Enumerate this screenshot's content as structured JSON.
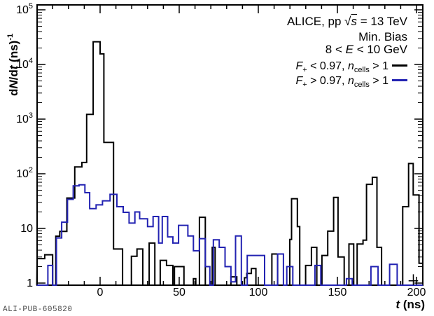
{
  "watermark": "ALI-PUB-605820",
  "colors": {
    "series_low_fplus": "#000000",
    "series_high_fplus": "#2222b2",
    "frame": "#000000",
    "watermark_text": "#4a4a4a"
  },
  "annotations": {
    "line1": {
      "pre": "ALICE, pp ",
      "sqrt_sign": "√",
      "sqrt_arg": "s",
      "post": " = 13 TeV"
    },
    "line2": "Min. Bias",
    "line3": {
      "pre": "8 < ",
      "var": "E",
      "post": " < 10 GeV"
    }
  },
  "legend": {
    "entries": [
      {
        "var1": "F",
        "sub1": "+",
        "mid": " < 0.97, ",
        "var2": "n",
        "sub2": "cells",
        "post": " > 1",
        "color": "#000000"
      },
      {
        "var1": "F",
        "sub1": "+",
        "mid": " > 0.97, ",
        "var2": "n",
        "sub2": "cells",
        "post": " > 1",
        "color": "#2222b2"
      }
    ]
  },
  "axes": {
    "x": {
      "label": {
        "var": "t",
        "unit": " (ns)"
      },
      "min": -40,
      "max": 204,
      "major_ticks": [
        0,
        50,
        100,
        150,
        200
      ],
      "tick_labels": [
        "0",
        "50",
        "100",
        "150",
        "200"
      ],
      "minor_step": 10
    },
    "y": {
      "label": {
        "pre": "d",
        "var1": "N",
        "mid": "/d",
        "var2": "t",
        "unit": " (ns)",
        "sup": "-1"
      },
      "scale": "log",
      "min": 0.9,
      "max": 100000,
      "major_ticks": [
        1,
        10,
        100,
        1000,
        10000,
        100000
      ],
      "tick_labels": [
        {
          "base": "1",
          "exp": ""
        },
        {
          "base": "10",
          "exp": ""
        },
        {
          "base": "10",
          "exp": "2"
        },
        {
          "base": "10",
          "exp": "3"
        },
        {
          "base": "10",
          "exp": "4"
        },
        {
          "base": "10",
          "exp": "5"
        }
      ]
    }
  },
  "chart_data": {
    "type": "step-histogram",
    "title": "ALICE, pp sqrt(s) = 13 TeV, Min. Bias, 8 < E < 10 GeV",
    "xlabel": "t (ns)",
    "ylabel": "dN/dt (ns)^-1",
    "x_range": [
      -40,
      204
    ],
    "y_range": [
      0.9,
      100000
    ],
    "y_scale": "log",
    "grid": false,
    "legend_position": "top-right",
    "series": [
      {
        "name": "F+ < 0.97, n_cells > 1",
        "color": "#000000",
        "segments_t0_t1_value": [
          [
            -40,
            -35,
            2.8
          ],
          [
            -35,
            -30,
            3.3
          ],
          [
            -30,
            -28,
            0
          ],
          [
            -28,
            -25.5,
            7.2
          ],
          [
            -25.5,
            -21,
            8.8
          ],
          [
            -21,
            -16,
            36
          ],
          [
            -16,
            -11.5,
            133
          ],
          [
            -11.5,
            -8.5,
            161
          ],
          [
            -8.5,
            -4.4,
            1220
          ],
          [
            -4.4,
            0,
            26000
          ],
          [
            0,
            2.4,
            15600
          ],
          [
            2.4,
            8.5,
            375
          ],
          [
            8.5,
            14.2,
            4.2
          ],
          [
            14.2,
            19.8,
            0
          ],
          [
            19.8,
            23.3,
            3.1
          ],
          [
            23.3,
            27,
            4.2
          ],
          [
            27,
            31,
            0
          ],
          [
            31,
            34.6,
            5.4
          ],
          [
            34.6,
            38,
            0
          ],
          [
            38,
            42,
            2.6
          ],
          [
            42,
            46,
            2.1
          ],
          [
            46,
            47,
            0
          ],
          [
            47,
            53,
            2.0
          ],
          [
            53,
            59,
            0
          ],
          [
            59,
            60.5,
            1.2
          ],
          [
            60.5,
            62.8,
            0
          ],
          [
            62.8,
            66.5,
            16
          ],
          [
            66.5,
            70.9,
            0
          ],
          [
            70.9,
            72.7,
            4.5
          ],
          [
            72.7,
            82.7,
            0
          ],
          [
            82.7,
            86.4,
            1.3
          ],
          [
            86.4,
            91.3,
            0
          ],
          [
            91.3,
            92.7,
            1.25
          ],
          [
            92.7,
            95.6,
            1.5
          ],
          [
            95.6,
            98.5,
            1.85
          ],
          [
            98.5,
            108.6,
            0
          ],
          [
            108.6,
            112.2,
            3.4
          ],
          [
            112.2,
            119.9,
            0
          ],
          [
            119.9,
            121,
            6.3
          ],
          [
            121,
            124.7,
            35
          ],
          [
            124.7,
            126.2,
            10.8
          ],
          [
            126.2,
            129.9,
            0
          ],
          [
            129.9,
            133.6,
            2.1
          ],
          [
            133.6,
            137,
            4.5
          ],
          [
            137,
            140.2,
            0
          ],
          [
            140.2,
            143.9,
            3.2
          ],
          [
            143.9,
            147.6,
            8.9
          ],
          [
            147.6,
            150.4,
            37
          ],
          [
            150.4,
            154.3,
            3
          ],
          [
            154.3,
            157.3,
            0
          ],
          [
            157.3,
            160.3,
            5.2
          ],
          [
            160.3,
            162.5,
            0
          ],
          [
            162.5,
            166.2,
            5.2
          ],
          [
            166.2,
            168.4,
            6.1
          ],
          [
            168.4,
            172.1,
            64
          ],
          [
            172.1,
            175,
            86
          ],
          [
            175,
            177.9,
            4.5
          ],
          [
            177.9,
            191.3,
            0
          ],
          [
            191.3,
            195,
            25
          ],
          [
            195,
            197.9,
            154
          ],
          [
            197.9,
            201.6,
            41
          ],
          [
            201.6,
            204,
            2.3
          ]
        ]
      },
      {
        "name": "F+ > 0.97, n_cells > 1",
        "color": "#2222b2",
        "segments_t0_t1_value": [
          [
            -40,
            -33,
            0
          ],
          [
            -33,
            -30,
            2.1
          ],
          [
            -30,
            -27.6,
            0
          ],
          [
            -27.6,
            -24.3,
            6.7
          ],
          [
            -24.3,
            -20.6,
            13
          ],
          [
            -20.6,
            -17,
            34
          ],
          [
            -17,
            -13.3,
            60
          ],
          [
            -13.3,
            -9.6,
            63
          ],
          [
            -9.6,
            -6.6,
            45
          ],
          [
            -6.6,
            -2.5,
            23
          ],
          [
            -2.5,
            1.5,
            27
          ],
          [
            1.5,
            6.3,
            32
          ],
          [
            6.3,
            10.6,
            42
          ],
          [
            10.6,
            14.6,
            25
          ],
          [
            14.6,
            18.3,
            19.7
          ],
          [
            18.3,
            22,
            12.5
          ],
          [
            22,
            25,
            20
          ],
          [
            25,
            30,
            15
          ],
          [
            30,
            33.5,
            10.8
          ],
          [
            33.5,
            37,
            16.5
          ],
          [
            37,
            39.3,
            5.4
          ],
          [
            39.3,
            42.7,
            16.5
          ],
          [
            42.7,
            46,
            7
          ],
          [
            46,
            49.6,
            5.4
          ],
          [
            49.6,
            55.5,
            11.4
          ],
          [
            55.5,
            59,
            7.3
          ],
          [
            59,
            62.8,
            3.9
          ],
          [
            62.8,
            66.5,
            6.5
          ],
          [
            66.5,
            69.4,
            2
          ],
          [
            69.4,
            71.6,
            0
          ],
          [
            71.6,
            75.3,
            6.2
          ],
          [
            75.3,
            79,
            4.5
          ],
          [
            79,
            82.7,
            2
          ],
          [
            82.7,
            85.6,
            1.05
          ],
          [
            85.6,
            89.3,
            7.3
          ],
          [
            89.3,
            93,
            0
          ],
          [
            93,
            104,
            3.2
          ],
          [
            104,
            112.2,
            0
          ],
          [
            112.2,
            115.9,
            3.4
          ],
          [
            115.9,
            118,
            0
          ],
          [
            118,
            121.8,
            2
          ],
          [
            121.8,
            135.8,
            0
          ],
          [
            135.8,
            139.5,
            2.1
          ],
          [
            139.5,
            155.7,
            0
          ],
          [
            155.7,
            159.4,
            1.2
          ],
          [
            159.4,
            171.2,
            0
          ],
          [
            171.2,
            175.7,
            2
          ],
          [
            175.7,
            183,
            0
          ],
          [
            183,
            187.8,
            2.2
          ],
          [
            187.8,
            204,
            0
          ]
        ]
      }
    ],
    "markers": [
      {
        "series": "F+ < 0.97, n_cells > 1",
        "t": 198,
        "value": 1.1,
        "t_err": 3,
        "v_low": 0.85,
        "v_high": 1.45,
        "color": "#000000"
      }
    ]
  }
}
